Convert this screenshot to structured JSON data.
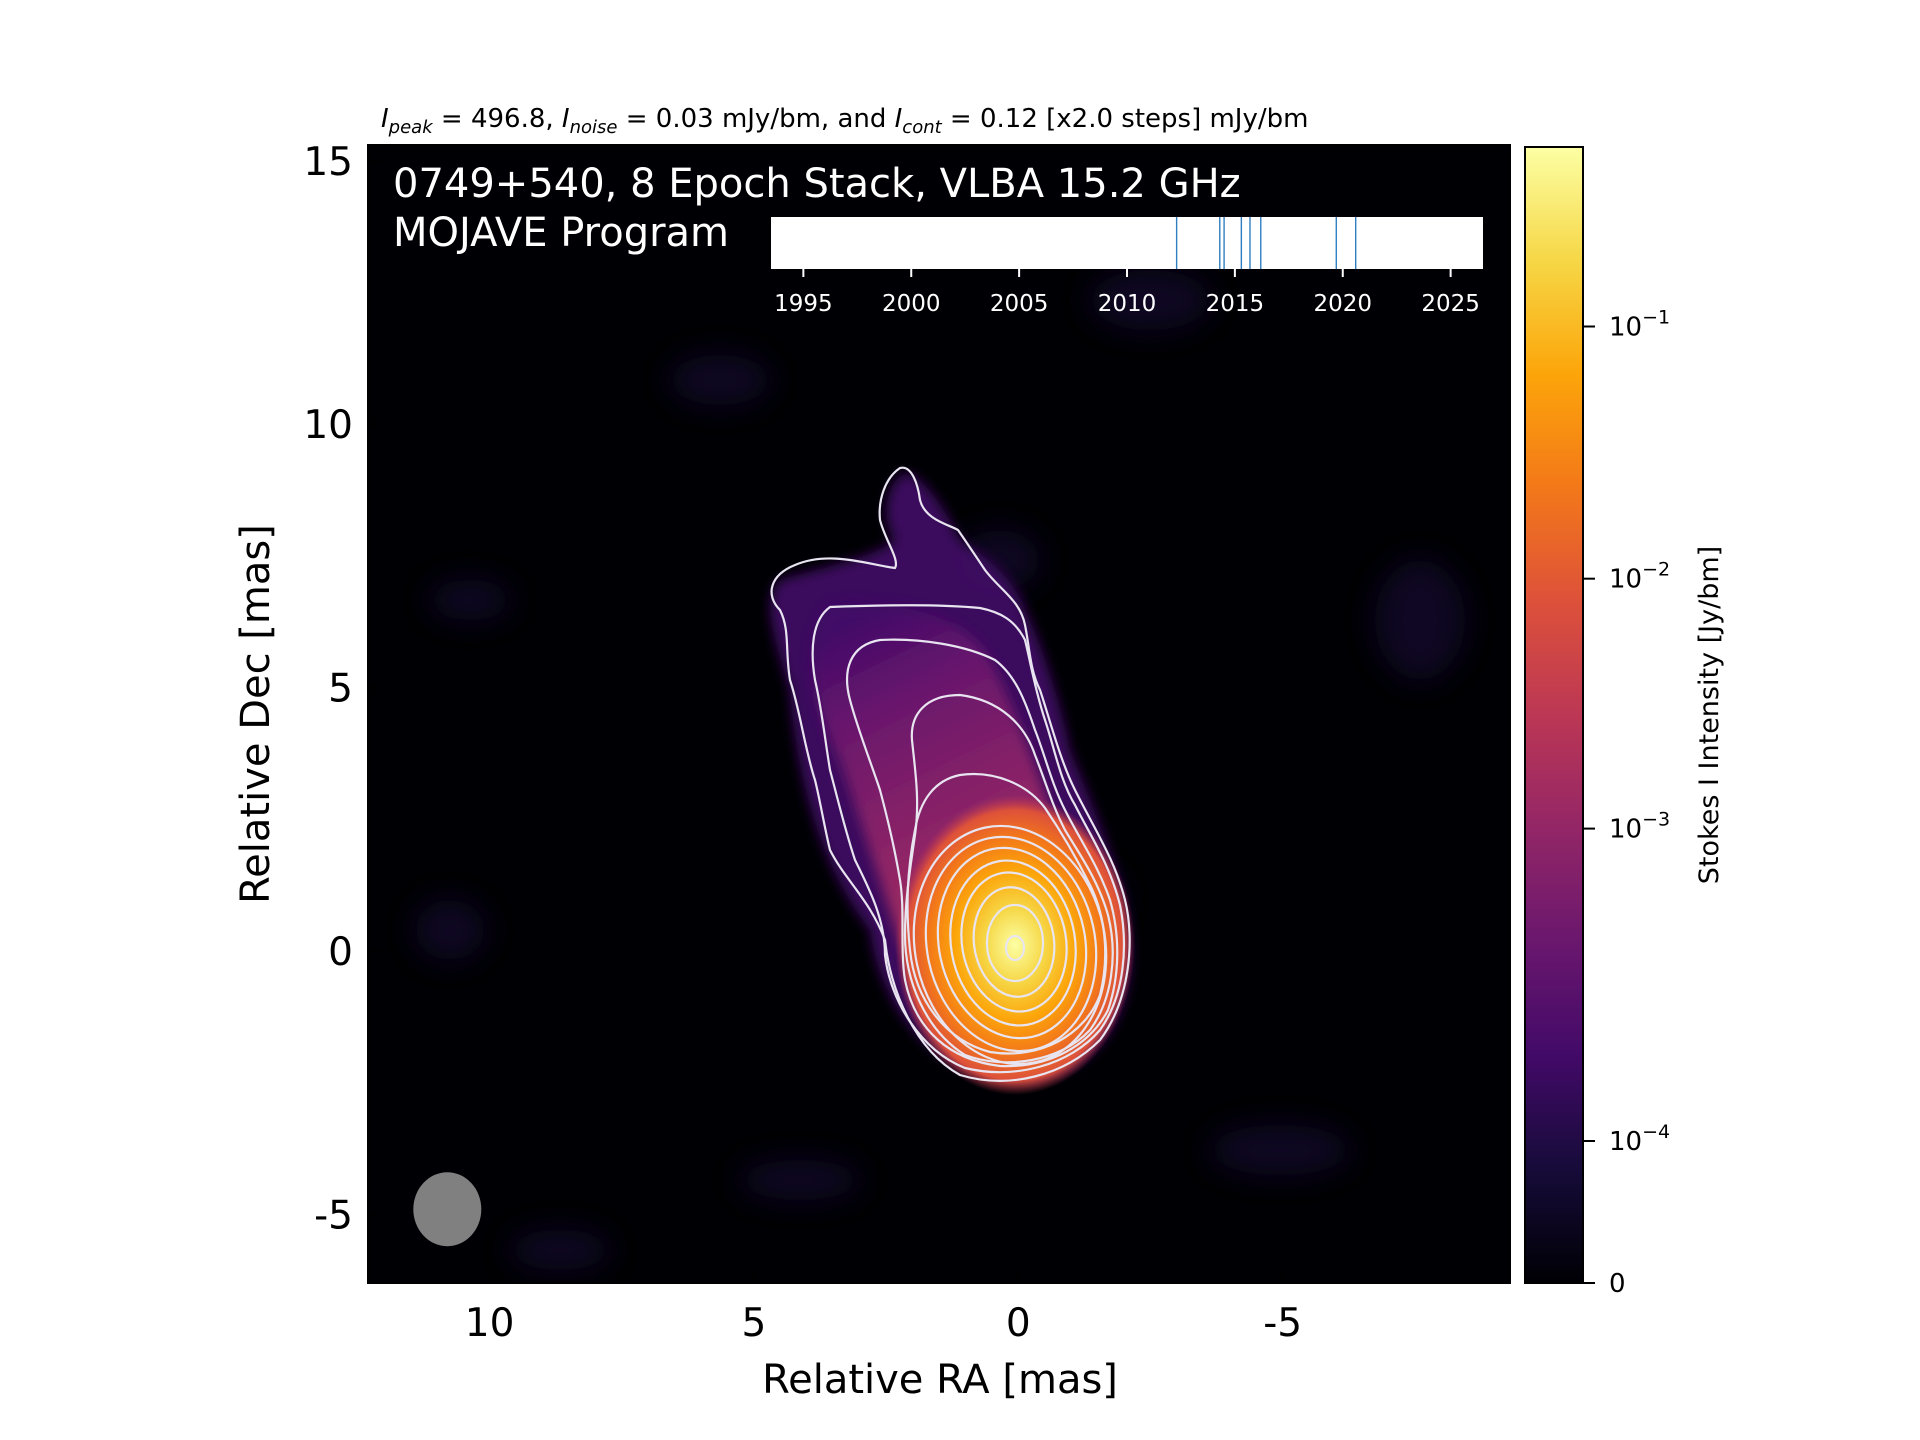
{
  "chart_data": {
    "type": "heatmap",
    "subtitle": {
      "peak_sym": "I",
      "peak_sub": "peak",
      "peak_text": " = 496.8, ",
      "noise_sym": "I",
      "noise_sub": "noise",
      "noise_text": " = 0.03 mJy/bm, and ",
      "cont_sym": "I",
      "cont_sub": "cont",
      "cont_text": " = 0.12 [x2.0 steps] mJy/bm"
    },
    "title_line1": "0749+540, 8 Epoch Stack, VLBA 15.2 GHz",
    "title_line2": "MOJAVE Program",
    "xlabel": "Relative RA [mas]",
    "ylabel": "Relative Dec [mas]",
    "xlim": [
      12.3,
      -9.3
    ],
    "ylim": [
      -6.3,
      15.3
    ],
    "x_ticks": [
      {
        "value": 10,
        "label": "10"
      },
      {
        "value": 5,
        "label": "5"
      },
      {
        "value": 0,
        "label": "0"
      },
      {
        "value": -5,
        "label": "-5"
      }
    ],
    "y_ticks": [
      {
        "value": 15,
        "label": "15"
      },
      {
        "value": 10,
        "label": "10"
      },
      {
        "value": 5,
        "label": "5"
      },
      {
        "value": 0,
        "label": "0"
      },
      {
        "value": -5,
        "label": "-5"
      }
    ],
    "colorbar": {
      "label": "Stokes I Intensity [Jy/bm]",
      "colormap": "inferno",
      "ticks": [
        {
          "label": "0",
          "exp": "",
          "frac": 0.0
        },
        {
          "label": "10",
          "exp": "−4",
          "frac": 0.125
        },
        {
          "label": "10",
          "exp": "−3",
          "frac": 0.4
        },
        {
          "label": "10",
          "exp": "−2",
          "frac": 0.62
        },
        {
          "label": "10",
          "exp": "−1",
          "frac": 0.842
        }
      ]
    },
    "epoch_timeline": {
      "xlim": [
        1993.5,
        2026.5
      ],
      "ticks": [
        1995,
        2000,
        2005,
        2010,
        2015,
        2020,
        2025
      ],
      "epochs": [
        2012.3,
        2014.3,
        2014.5,
        2015.3,
        2015.7,
        2016.2,
        2019.7,
        2020.6
      ]
    },
    "peak_position": [
      0,
      0
    ],
    "beam": {
      "center_ra": 10.8,
      "center_dec": -4.9,
      "major_mas": 1.4,
      "minor_mas": 1.3
    },
    "contour_levels_jy": [
      0.00012,
      0.00024,
      0.00048,
      0.00096,
      0.00192,
      0.00384,
      0.00768,
      0.01536,
      0.03072,
      0.06144,
      0.12288,
      0.24576,
      0.49152
    ],
    "grid": false
  }
}
